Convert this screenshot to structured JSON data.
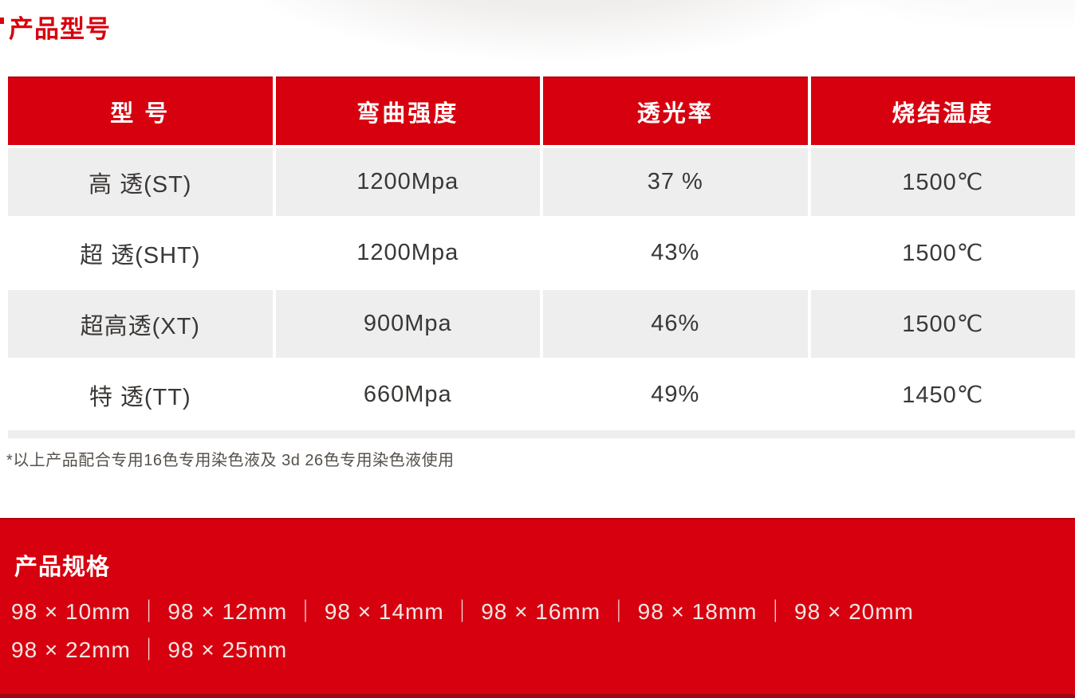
{
  "page": {
    "section1_title": "产品型号",
    "footnote": "*以上产品配合专用16色专用染色液及 3d 26色专用染色液使用",
    "section2_title": "产品规格"
  },
  "table": {
    "headers": [
      "型 号",
      "弯曲强度",
      "透光率",
      "烧结温度"
    ],
    "rows": [
      [
        "高 透(ST)",
        "1200Mpa",
        "37 %",
        "1500℃"
      ],
      [
        "超 透(SHT)",
        "1200Mpa",
        "43%",
        "1500℃"
      ],
      [
        "超高透(XT)",
        "900Mpa",
        "46%",
        "1500℃"
      ],
      [
        "特 透(TT)",
        "660Mpa",
        "49%",
        "1450℃"
      ]
    ]
  },
  "specs": {
    "line1": "98 × 10mm ｜ 98 × 12mm ｜ 98 × 14mm ｜ 98 × 16mm ｜ 98 × 18mm ｜ 98 × 20mm",
    "line2": "98 × 22mm ｜ 98 × 25mm"
  },
  "colors": {
    "accent_red": "#d7000f",
    "dark_red_edge": "#b00410",
    "dark_red_bottom_bar": "#a2040f",
    "row_gray": "#efeeee",
    "cell_text": "#3a3836"
  }
}
